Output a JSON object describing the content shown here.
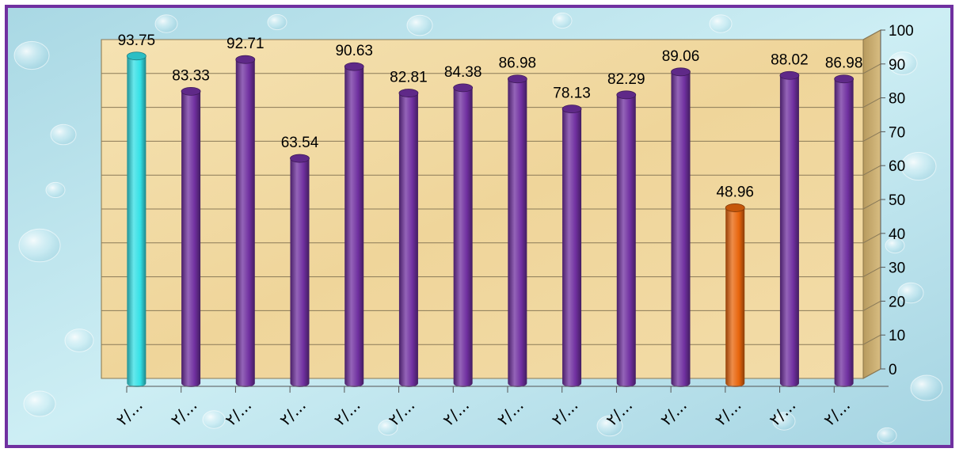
{
  "chart_data": {
    "type": "bar",
    "categories": [
      "٢/...",
      "٢/...",
      "٢/...",
      "٢/...",
      "٢/...",
      "٢/...",
      "٢/...",
      "٢/...",
      "٢/...",
      "٢/...",
      "٢/...",
      "٢/...",
      "٢/...",
      "٢/..."
    ],
    "values": [
      93.75,
      83.33,
      92.71,
      63.54,
      90.63,
      82.81,
      84.38,
      86.98,
      78.13,
      82.29,
      89.06,
      48.96,
      88.02,
      86.98
    ],
    "value_labels": [
      "93.75",
      "83.33",
      "92.71",
      "63.54",
      "90.63",
      "82.81",
      "84.38",
      "86.98",
      "78.13",
      "82.29",
      "89.06",
      "48.96",
      "88.02",
      "86.98"
    ],
    "y_ticks": [
      "0",
      "10",
      "20",
      "30",
      "40",
      "50",
      "60",
      "70",
      "80",
      "90",
      "100"
    ],
    "ylim": [
      0,
      100
    ],
    "y_axis_side": "right",
    "grid": true,
    "title": "",
    "xlabel": "",
    "ylabel": "",
    "colors": {
      "default_bar": "#7030a0",
      "highlight_first": "#33e0e6",
      "highlight_low": "#e8650c",
      "frame_border": "#7030a0",
      "plot_background": "#f2dca6",
      "page_background": "#bfe3ec"
    },
    "bar_colors": [
      "#33e0e6",
      "#7030a0",
      "#7030a0",
      "#7030a0",
      "#7030a0",
      "#7030a0",
      "#7030a0",
      "#7030a0",
      "#7030a0",
      "#7030a0",
      "#7030a0",
      "#e8650c",
      "#7030a0",
      "#7030a0"
    ]
  }
}
